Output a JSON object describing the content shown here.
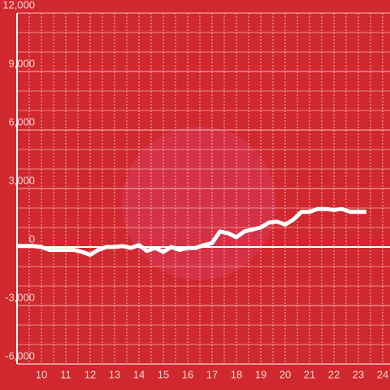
{
  "chart_data": {
    "type": "line",
    "x": [
      9,
      9.33,
      9.67,
      10,
      10.33,
      10.67,
      11,
      11.33,
      11.67,
      12,
      12.33,
      12.67,
      13,
      13.33,
      13.67,
      14,
      14.33,
      14.67,
      15,
      15.33,
      15.67,
      16,
      16.33,
      16.67,
      17,
      17.33,
      17.67,
      18,
      18.33,
      18.67,
      19,
      19.33,
      19.67,
      20,
      20.33,
      20.67,
      21,
      21.33,
      21.67,
      22,
      22.33,
      22.67,
      23,
      23.33
    ],
    "series": [
      {
        "color": "#ffffff",
        "values": [
          50,
          50,
          50,
          0,
          -150,
          -150,
          -150,
          -150,
          -250,
          -400,
          -150,
          0,
          0,
          50,
          -50,
          100,
          -200,
          -50,
          -250,
          0,
          -150,
          -50,
          -50,
          100,
          200,
          800,
          700,
          500,
          800,
          900,
          1000,
          1250,
          1300,
          1150,
          1400,
          1800,
          1800,
          1950,
          1950,
          1900,
          1950,
          1800,
          1800,
          1800
        ]
      }
    ],
    "xlim": [
      9,
      24.3
    ],
    "xticks": [
      10,
      11,
      12,
      13,
      14,
      15,
      16,
      17,
      18,
      19,
      20,
      21,
      22,
      23,
      24
    ],
    "ylim": [
      -6000,
      12000
    ],
    "yticks": [
      {
        "value": -6000,
        "label": "-6,000"
      },
      {
        "value": -3000,
        "label": "-3,000"
      },
      0,
      {
        "value": 3000,
        "label": "3,000"
      },
      {
        "value": 6000,
        "label": "6,000"
      },
      {
        "value": 9000,
        "label": "9,000"
      },
      {
        "value": 12000,
        "label": "12,000"
      }
    ],
    "grid": true
  }
}
